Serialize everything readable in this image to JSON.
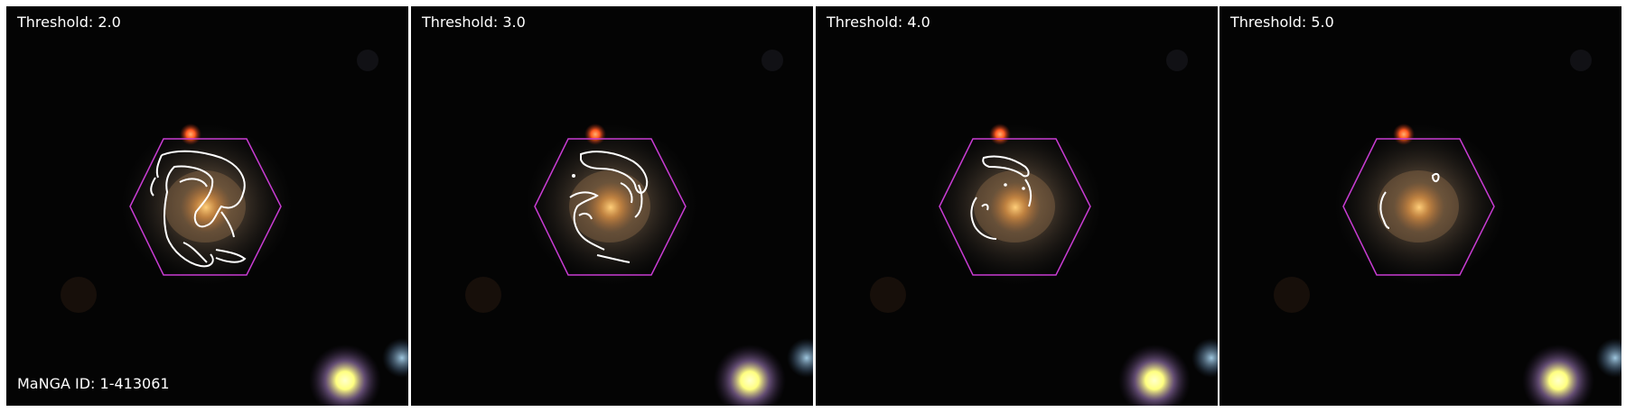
{
  "figure": {
    "panels": [
      {
        "threshold_label": "Threshold: 2.0",
        "threshold": 2.0
      },
      {
        "threshold_label": "Threshold: 3.0",
        "threshold": 3.0
      },
      {
        "threshold_label": "Threshold: 4.0",
        "threshold": 4.0
      },
      {
        "threshold_label": "Threshold: 5.0",
        "threshold": 5.0
      }
    ],
    "manga_id_label": "MaNGA ID: 1-413061",
    "colors": {
      "background": "#020202",
      "ifu_hexagon": "#c83cd2",
      "contour": "#ffffff",
      "galaxy_core": "#e0a060",
      "foreground_star": "#ffff9a",
      "red_star": "#ff6a2a"
    }
  }
}
